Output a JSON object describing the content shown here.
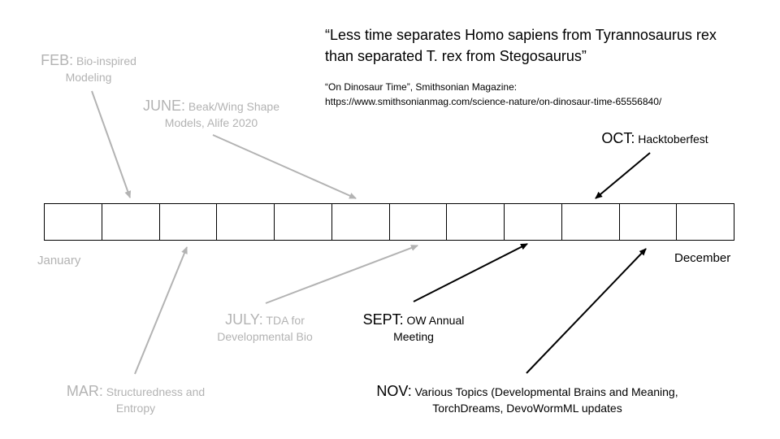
{
  "quote": {
    "text": "“Less time separates Homo sapiens from Tyrannosaurus rex than separated T. rex from Stegosaurus”",
    "source_line1": "“On Dinosaur Time”, Smithsonian Magazine:",
    "source_line2": "https://www.smithsonianmag.com/science-nature/on-dinosaur-time-65556840/"
  },
  "timeline": {
    "cell_count": 12,
    "start_label": "January",
    "end_label": "December"
  },
  "events": {
    "feb": {
      "month": "FEB:",
      "line1": "Bio-inspired",
      "line2": "Modeling",
      "color": "#b3b3b3"
    },
    "june": {
      "month": "JUNE:",
      "line1": "Beak/Wing Shape",
      "line2": "Models, Alife 2020",
      "color": "#b3b3b3"
    },
    "mar": {
      "month": "MAR:",
      "line1": "Structuredness and",
      "line2": "Entropy",
      "color": "#b3b3b3"
    },
    "july": {
      "month": "JULY:",
      "line1": "TDA for",
      "line2": "Developmental Bio",
      "color": "#b3b3b3"
    },
    "sept": {
      "month": "SEPT:",
      "line1": "OW Annual",
      "line2": "Meeting",
      "color": "#000000"
    },
    "oct": {
      "month": "OCT:",
      "line1": "Hacktoberfest",
      "color": "#000000"
    },
    "nov": {
      "month": "NOV:",
      "line1": "Various Topics (Developmental Brains and Meaning,",
      "line2": "TorchDreams, DevoWormML updates",
      "color": "#000000"
    }
  }
}
